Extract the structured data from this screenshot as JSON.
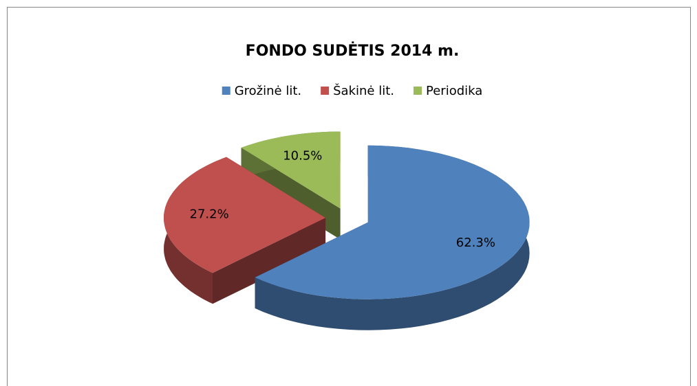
{
  "chart_data": {
    "type": "pie",
    "title": "FONDO SUDĖTIS 2014 m.",
    "categories": [
      "Grožinė lit.",
      "Šakinė lit.",
      "Periodika"
    ],
    "values": [
      62.3,
      27.2,
      10.5
    ],
    "value_labels": [
      "62.3%",
      "27.2%",
      "10.5%"
    ],
    "colors": [
      "#4f81bd",
      "#c0504d",
      "#9bbb59"
    ],
    "legend": "top"
  }
}
